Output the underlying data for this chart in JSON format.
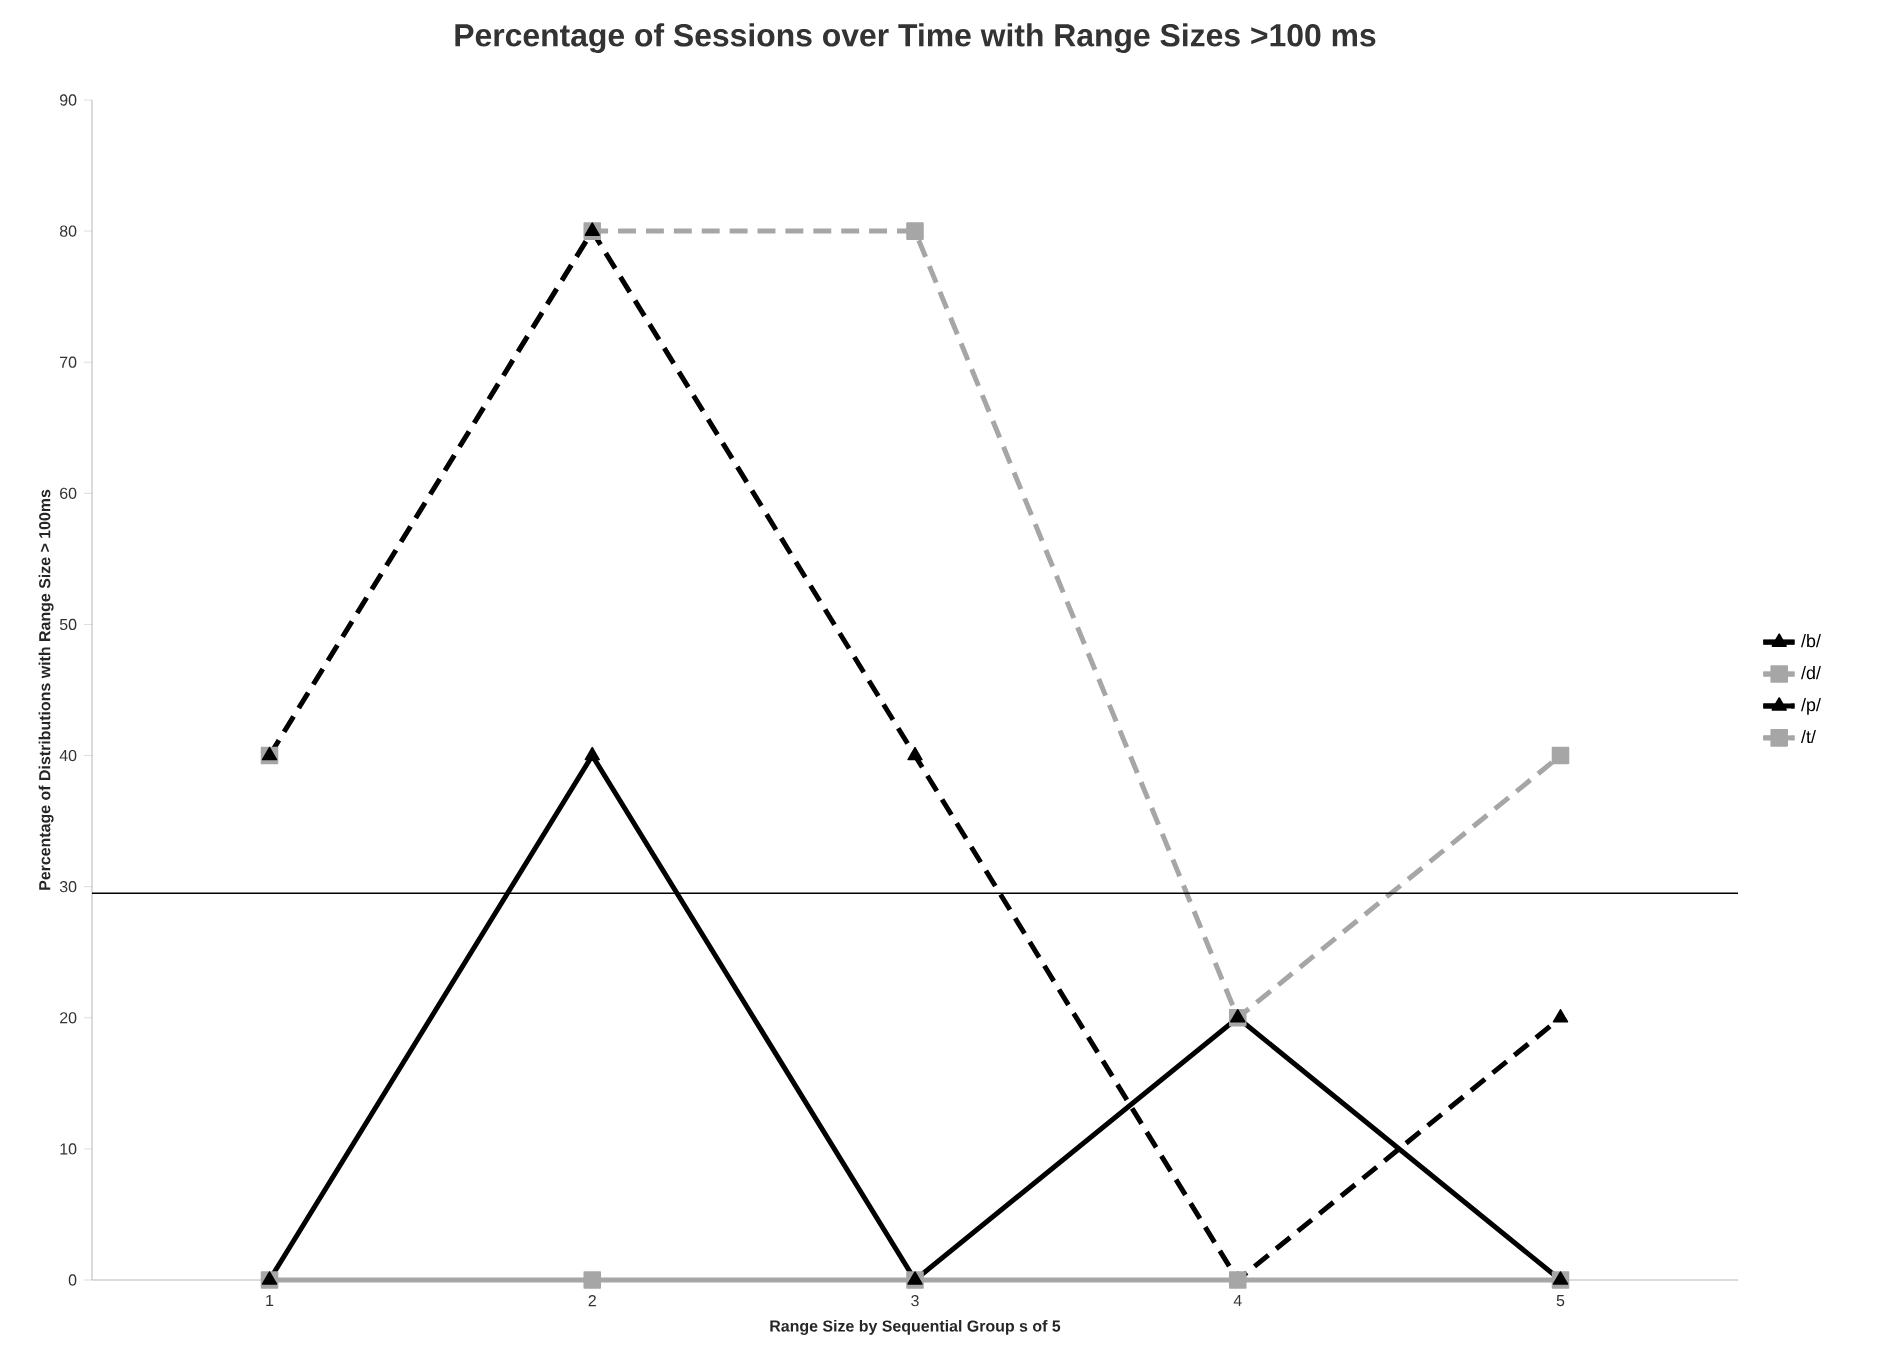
{
  "chart_data": {
    "type": "line",
    "title": "Percentage of Sessions over Time with Range Sizes >100 ms",
    "xlabel": "Range Size by Sequential Group s of 5",
    "ylabel": "Percentage of Distributions with Range Size > 100ms",
    "categories": [
      "1",
      "2",
      "3",
      "4",
      "5"
    ],
    "series": [
      {
        "name": "/b/",
        "color": "#000000",
        "values": [
          0,
          40,
          0,
          20,
          0
        ],
        "marker": "triangle",
        "line_style": "solid"
      },
      {
        "name": "/d/",
        "color": "#a6a6a6",
        "values": [
          0,
          0,
          0,
          0,
          0
        ],
        "marker": "square",
        "line_style": "solid"
      },
      {
        "name": "/p/",
        "color": "#000000",
        "values": [
          40,
          80,
          40,
          0,
          20
        ],
        "marker": "triangle",
        "line_style": "dashed"
      },
      {
        "name": "/t/",
        "color": "#a6a6a6",
        "values": [
          40,
          80,
          80,
          20,
          40
        ],
        "marker": "square",
        "line_style": "dashed"
      }
    ],
    "ylim": [
      0,
      90
    ],
    "yticks": [
      0,
      10,
      20,
      30,
      40,
      50,
      60,
      70,
      80,
      90
    ],
    "ref_lines": [
      {
        "axis": "y",
        "value": 29.5,
        "color": "#000000"
      }
    ],
    "grid": false,
    "legend": "right"
  }
}
